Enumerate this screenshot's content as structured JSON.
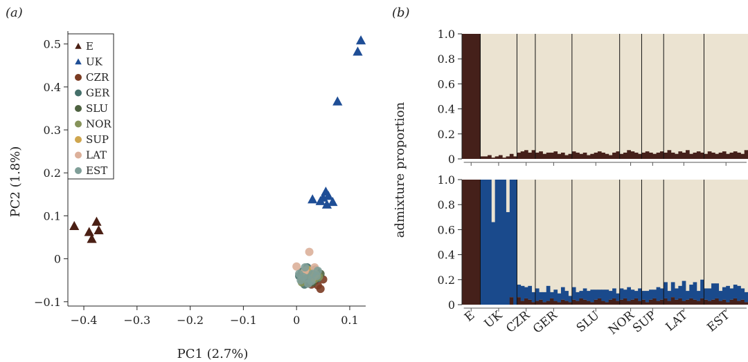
{
  "chart_data": [
    {
      "panel_label": "(a)",
      "type": "scatter",
      "xlabel": "PC1 (2.7%)",
      "ylabel": "PC2 (1.8%)",
      "xlim": [
        -0.43,
        0.13
      ],
      "ylim": [
        -0.11,
        0.53
      ],
      "xticks": [
        -0.4,
        -0.3,
        -0.2,
        -0.1,
        0,
        0.1
      ],
      "xtick_labels": [
        "−0.4",
        "−0.3",
        "−0.2",
        "−0.1",
        "0",
        "0.1"
      ],
      "yticks": [
        -0.1,
        0,
        0.1,
        0.2,
        0.3,
        0.4,
        0.5
      ],
      "ytick_labels": [
        "−0.1",
        "0",
        "0.1",
        "0.2",
        "0.3",
        "0.4",
        "0.5"
      ],
      "legend_position": "top-left",
      "series": [
        {
          "name": "E",
          "marker": "triangle",
          "color": "#4a1f14",
          "points": [
            [
              -0.418,
              0.076
            ],
            [
              -0.376,
              0.086
            ],
            [
              -0.39,
              0.062
            ],
            [
              -0.372,
              0.066
            ],
            [
              -0.385,
              0.046
            ]
          ]
        },
        {
          "name": "UK",
          "marker": "triangle",
          "color": "#1f4e96",
          "points": [
            [
              0.121,
              0.508
            ],
            [
              0.115,
              0.482
            ],
            [
              0.077,
              0.366
            ],
            [
              0.055,
              0.156
            ],
            [
              0.05,
              0.142
            ],
            [
              0.06,
              0.146
            ],
            [
              0.03,
              0.138
            ],
            [
              0.045,
              0.134
            ],
            [
              0.068,
              0.132
            ],
            [
              0.057,
              0.126
            ]
          ]
        },
        {
          "name": "CZR",
          "marker": "circle",
          "color": "#7b3b22",
          "points": [
            [
              0.02,
              -0.055
            ],
            [
              0.04,
              -0.062
            ],
            [
              0.05,
              -0.048
            ],
            [
              0.025,
              -0.035
            ],
            [
              0.035,
              -0.05
            ],
            [
              0.015,
              -0.045
            ],
            [
              0.045,
              -0.07
            ],
            [
              0.028,
              -0.06
            ]
          ]
        },
        {
          "name": "GER",
          "marker": "circle",
          "color": "#45706a",
          "points": [
            [
              0.01,
              -0.03
            ],
            [
              0.03,
              -0.04
            ],
            [
              0.02,
              -0.02
            ],
            [
              0.04,
              -0.045
            ],
            [
              0.015,
              -0.06
            ],
            [
              0.035,
              -0.025
            ],
            [
              0.025,
              -0.05
            ],
            [
              0.005,
              -0.04
            ]
          ]
        },
        {
          "name": "SLU",
          "marker": "circle",
          "color": "#4e6240",
          "points": [
            [
              0.022,
              -0.042
            ],
            [
              0.038,
              -0.03
            ],
            [
              0.012,
              -0.05
            ],
            [
              0.03,
              -0.055
            ],
            [
              0.045,
              -0.035
            ]
          ]
        },
        {
          "name": "NOR",
          "marker": "circle",
          "color": "#86935a",
          "points": [
            [
              0.018,
              -0.038
            ],
            [
              0.033,
              -0.048
            ],
            [
              0.026,
              -0.028
            ],
            [
              0.042,
              -0.042
            ],
            [
              0.01,
              -0.055
            ]
          ]
        },
        {
          "name": "SUP",
          "marker": "circle",
          "color": "#cfa64e",
          "points": [
            [
              0.02,
              -0.025
            ],
            [
              0.036,
              -0.036
            ],
            [
              0.014,
              -0.032
            ],
            [
              0.03,
              -0.045
            ]
          ]
        },
        {
          "name": "LAT",
          "marker": "circle",
          "color": "#dcb09a",
          "points": [
            [
              0.024,
              0.016
            ],
            [
              0.0,
              -0.018
            ],
            [
              0.034,
              -0.02
            ],
            [
              0.016,
              -0.028
            ]
          ]
        },
        {
          "name": "EST",
          "marker": "circle",
          "color": "#7f9e98",
          "points": [
            [
              0.005,
              -0.035
            ],
            [
              0.02,
              -0.045
            ],
            [
              0.03,
              -0.035
            ],
            [
              0.012,
              -0.042
            ],
            [
              0.028,
              -0.052
            ],
            [
              0.038,
              -0.04
            ],
            [
              0.016,
              -0.02
            ],
            [
              0.022,
              -0.058
            ],
            [
              0.04,
              -0.028
            ],
            [
              0.008,
              -0.05
            ]
          ]
        }
      ]
    },
    {
      "panel_label": "(b)",
      "type": "bar",
      "ylabel": "admixture proportion",
      "ylim": [
        0,
        1
      ],
      "yticks": [
        0,
        0.2,
        0.4,
        0.6,
        0.8,
        1.0
      ],
      "ytick_labels": [
        "0",
        "0.2",
        "0.4",
        "0.6",
        "0.8",
        "1.0"
      ],
      "populations": [
        "E",
        "UK",
        "CZR",
        "GER",
        "SLU",
        "NOR",
        "SUP",
        "LAT",
        "EST"
      ],
      "population_sizes": [
        5,
        10,
        5,
        10,
        13,
        6,
        6,
        11,
        12
      ],
      "colors": {
        "E": "#45201a",
        "UK": "#1a4a8c",
        "other": "#ebe3d1"
      },
      "top_panel": {
        "k": 2,
        "E_component": [
          1,
          1,
          1,
          1,
          1,
          0.02,
          0.02,
          0.03,
          0.01,
          0.02,
          0.03,
          0.01,
          0.02,
          0.04,
          0.02,
          0.05,
          0.06,
          0.07,
          0.05,
          0.07,
          0.05,
          0.06,
          0.04,
          0.05,
          0.05,
          0.06,
          0.04,
          0.05,
          0.03,
          0.04,
          0.06,
          0.05,
          0.04,
          0.05,
          0.03,
          0.04,
          0.05,
          0.06,
          0.05,
          0.04,
          0.03,
          0.05,
          0.06,
          0.04,
          0.05,
          0.07,
          0.06,
          0.05,
          0.04,
          0.05,
          0.06,
          0.05,
          0.04,
          0.05,
          0.06,
          0.05,
          0.07,
          0.05,
          0.04,
          0.06,
          0.05,
          0.07,
          0.04,
          0.05,
          0.06,
          0.05,
          0.04,
          0.06,
          0.05,
          0.04,
          0.05,
          0.06,
          0.04,
          0.05,
          0.06,
          0.05,
          0.04,
          0.07
        ]
      },
      "bottom_panel": {
        "k": 3,
        "E_component": [
          1,
          1,
          1,
          1,
          1,
          0,
          0,
          0,
          0,
          0,
          0,
          0,
          0,
          0.06,
          0,
          0.06,
          0.03,
          0.05,
          0.04,
          0.02,
          0.03,
          0.04,
          0.02,
          0.03,
          0.05,
          0.03,
          0.02,
          0.04,
          0.03,
          0.02,
          0.04,
          0.03,
          0.05,
          0.04,
          0.03,
          0.02,
          0.04,
          0.05,
          0.03,
          0.02,
          0.04,
          0.05,
          0.03,
          0.04,
          0.05,
          0.03,
          0.04,
          0.05,
          0.03,
          0.04,
          0.02,
          0.04,
          0.05,
          0.03,
          0.04,
          0.05,
          0.03,
          0.06,
          0.04,
          0.05,
          0.03,
          0.04,
          0.05,
          0.04,
          0.03,
          0.05,
          0.04,
          0.03,
          0.04,
          0.05,
          0.03,
          0.04,
          0.02,
          0.04,
          0.05,
          0.03,
          0.04,
          0.02
        ],
        "UK_component": [
          0,
          0,
          0,
          0,
          0,
          1,
          1,
          1,
          0.66,
          1,
          1,
          1,
          0.74,
          0.94,
          1,
          0.1,
          0.12,
          0.09,
          0.11,
          0.08,
          0.1,
          0.06,
          0.08,
          0.12,
          0.05,
          0.09,
          0.07,
          0.1,
          0.08,
          0.05,
          0.1,
          0.07,
          0.06,
          0.09,
          0.08,
          0.1,
          0.08,
          0.07,
          0.09,
          0.1,
          0.07,
          0.08,
          0.06,
          0.09,
          0.07,
          0.11,
          0.08,
          0.06,
          0.1,
          0.07,
          0.09,
          0.08,
          0.07,
          0.11,
          0.09,
          0.13,
          0.08,
          0.12,
          0.09,
          0.1,
          0.16,
          0.07,
          0.11,
          0.14,
          0.08,
          0.15,
          0.09,
          0.1,
          0.13,
          0.12,
          0.08,
          0.1,
          0.13,
          0.09,
          0.11,
          0.12,
          0.09,
          0.08
        ]
      }
    }
  ]
}
